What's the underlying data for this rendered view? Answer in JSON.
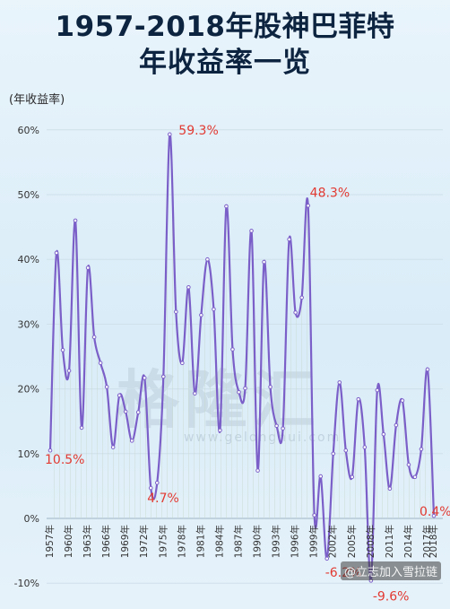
{
  "title_line1": "1957-2018年股神巴菲特",
  "title_line2": "年收益率一览",
  "watermark": "@立志加入雪拉链",
  "watermark_brand": "格隆汇",
  "watermark_url": "www.gelonghui.com",
  "colors": {
    "line": "#7b5fc8",
    "annotation": "#e23a32",
    "title": "#0d2440"
  },
  "chart_data": {
    "type": "line",
    "title": "1957-2018年股神巴菲特年收益率一览",
    "ylabel": "(年收益率)",
    "ylim": [
      -10,
      62
    ],
    "yticks": [
      "-10%",
      "0%",
      "10%",
      "20%",
      "30%",
      "40%",
      "50%",
      "60%"
    ],
    "ytick_values": [
      -10,
      0,
      10,
      20,
      30,
      40,
      50,
      60
    ],
    "x": [
      1957,
      1958,
      1959,
      1960,
      1961,
      1962,
      1963,
      1964,
      1965,
      1966,
      1967,
      1968,
      1969,
      1970,
      1971,
      1972,
      1973,
      1974,
      1975,
      1976,
      1977,
      1978,
      1979,
      1980,
      1981,
      1982,
      1983,
      1984,
      1985,
      1986,
      1987,
      1988,
      1989,
      1990,
      1991,
      1992,
      1993,
      1994,
      1995,
      1996,
      1997,
      1998,
      1999,
      2000,
      2001,
      2002,
      2003,
      2004,
      2005,
      2006,
      2007,
      2008,
      2009,
      2010,
      2011,
      2012,
      2013,
      2014,
      2015,
      2016,
      2017,
      2018
    ],
    "xticks": [
      "1957年",
      "1960年",
      "1963年",
      "1966年",
      "1969年",
      "1972年",
      "1975年",
      "1978年",
      "1981年",
      "1984年",
      "1987年",
      "1990年",
      "1993年",
      "1996年",
      "1999年",
      "2002年",
      "2005年",
      "2008年",
      "2011年",
      "2014年",
      "2017年",
      "2018年"
    ],
    "xtick_years": [
      1957,
      1960,
      1963,
      1966,
      1969,
      1972,
      1975,
      1978,
      1981,
      1984,
      1987,
      1990,
      1993,
      1996,
      1999,
      2002,
      2005,
      2008,
      2011,
      2014,
      2017,
      2018
    ],
    "series": [
      {
        "values": [
          10.5,
          41,
          26,
          22.8,
          46,
          14,
          38.7,
          28,
          24,
          20.3,
          11,
          19,
          16.5,
          12,
          16.4,
          21.7,
          4.7,
          5.5,
          21.9,
          59.3,
          31.9,
          24,
          35.7,
          19.3,
          31.4,
          40,
          32.3,
          13.6,
          48.2,
          26.1,
          19.5,
          20.1,
          44.4,
          7.4,
          39.6,
          20.3,
          14.3,
          13.9,
          43.1,
          31.8,
          34.1,
          48.3,
          0.5,
          6.5,
          -6.2,
          10,
          21,
          10.5,
          6.4,
          18.4,
          11,
          -9.6,
          19.8,
          13,
          4.6,
          14.4,
          18.2,
          8.3,
          6.4,
          10.7,
          23,
          0.4
        ]
      }
    ],
    "annotations": [
      {
        "label": "10.5%",
        "year": 1957,
        "value": 10.5
      },
      {
        "label": "4.7%",
        "year": 1973,
        "value": 4.7
      },
      {
        "label": "59.3%",
        "year": 1976,
        "value": 59.3
      },
      {
        "label": "48.3%",
        "year": 1998,
        "value": 48.3
      },
      {
        "label": "-6.2%",
        "year": 2001,
        "value": -6.2
      },
      {
        "label": "-9.6%",
        "year": 2008,
        "value": -9.6
      },
      {
        "label": "0.4%",
        "year": 2018,
        "value": 0.4
      }
    ]
  }
}
